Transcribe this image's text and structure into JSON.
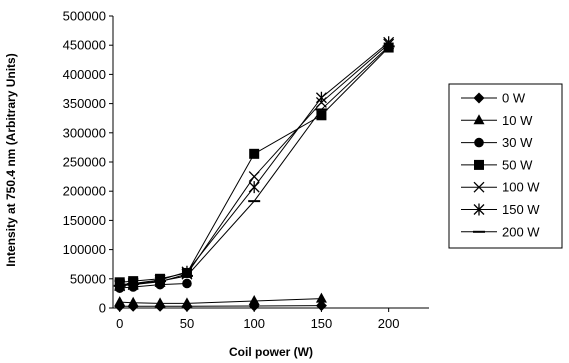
{
  "chart_data": {
    "type": "line",
    "title": "",
    "xlabel": "Coil power (W)",
    "ylabel": "Intensity at 750.4 nm (Arbitrary Units)",
    "xlim": [
      -5,
      230
    ],
    "ylim": [
      0,
      500000
    ],
    "xticks": [
      0,
      50,
      100,
      150,
      200
    ],
    "xtick_labels": [
      "0",
      "50",
      "100",
      "150",
      "200"
    ],
    "yticks": [
      0,
      50000,
      100000,
      150000,
      200000,
      250000,
      300000,
      350000,
      400000,
      450000,
      500000
    ],
    "ytick_labels": [
      "0",
      "50000",
      "100000",
      "150000",
      "200000",
      "250000",
      "300000",
      "350000",
      "400000",
      "450000",
      "500000"
    ],
    "grid": false,
    "legend_position": "right",
    "series": [
      {
        "name": "0 W",
        "marker": "diamond",
        "x": [
          0,
          10,
          30,
          50,
          100,
          150
        ],
        "y": [
          3000,
          3000,
          3000,
          3000,
          3500,
          4000
        ]
      },
      {
        "name": "10 W",
        "marker": "triangle",
        "x": [
          0,
          10,
          30,
          50,
          100,
          150
        ],
        "y": [
          10000,
          9000,
          8000,
          8000,
          12000,
          16000
        ]
      },
      {
        "name": "30 W",
        "marker": "circle",
        "x": [
          0,
          10,
          30,
          50
        ],
        "y": [
          34000,
          36000,
          40000,
          42000
        ]
      },
      {
        "name": "50 W",
        "marker": "square",
        "x": [
          0,
          10,
          30,
          50,
          100,
          150,
          200
        ],
        "y": [
          44000,
          46000,
          50000,
          60000,
          264000,
          330000,
          446000
        ]
      },
      {
        "name": "100 W",
        "marker": "x",
        "x": [
          0,
          10,
          30,
          50,
          100,
          150,
          200
        ],
        "y": [
          38000,
          40000,
          45000,
          58000,
          225000,
          352000,
          452000
        ]
      },
      {
        "name": "150 W",
        "marker": "star",
        "x": [
          0,
          10,
          30,
          50,
          100,
          150,
          200
        ],
        "y": [
          40000,
          42000,
          48000,
          62000,
          207000,
          360000,
          455000
        ]
      },
      {
        "name": "200 W",
        "marker": "dash",
        "x": [
          0,
          10,
          30,
          50,
          100,
          150,
          200
        ],
        "y": [
          38000,
          41000,
          46000,
          55000,
          183000,
          340000,
          448000
        ]
      }
    ]
  }
}
